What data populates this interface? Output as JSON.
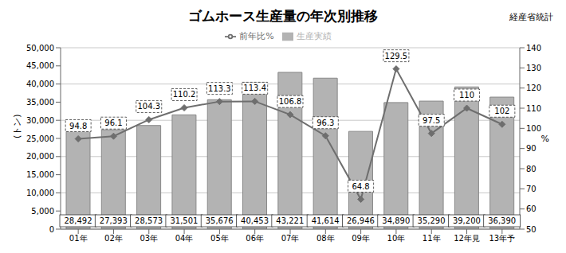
{
  "chart_data": {
    "type": "bar",
    "title": "ゴムホース生産量の年次別推移",
    "subtitle": "経産省統計",
    "y_label": "(トン)",
    "y2_label": "%",
    "categories": [
      "01年",
      "02年",
      "03年",
      "04年",
      "05年",
      "06年",
      "07年",
      "08年",
      "09年",
      "10年",
      "11年",
      "12年見",
      "13年予"
    ],
    "series": [
      {
        "name": "生産実績",
        "type": "bar",
        "color": "#b3b3b3",
        "values": [
          28492,
          27393,
          28573,
          31501,
          35676,
          40453,
          43221,
          41614,
          26946,
          34890,
          35290,
          39200,
          36390
        ],
        "value_labels": [
          "28,492",
          "27,393",
          "28,573",
          "31,501",
          "35,676",
          "40,453",
          "43,221",
          "41,614",
          "26,946",
          "34,890",
          "35,290",
          "39,200",
          "36,390"
        ]
      },
      {
        "name": "前年比%",
        "type": "line",
        "axis": "y2",
        "color": "#6e6e6e",
        "marker": "diamond",
        "values": [
          94.8,
          96.1,
          104.3,
          110.2,
          113.3,
          113.4,
          106.8,
          96.3,
          64.8,
          129.5,
          97.5,
          110,
          102
        ]
      }
    ],
    "ylim": [
      0,
      50000
    ],
    "yticks": [
      0,
      {
        "value": 5000,
        "label": "5,000"
      },
      {
        "value": 10000,
        "label": "10,000"
      },
      {
        "value": 15000,
        "label": "15,000"
      },
      {
        "value": 20000,
        "label": "20,000"
      },
      {
        "value": 25000,
        "label": "25,000"
      },
      {
        "value": 30000,
        "label": "30,000"
      },
      {
        "value": 35000,
        "label": "35,000"
      },
      {
        "value": 40000,
        "label": "40,000"
      },
      {
        "value": 45000,
        "label": "45,000"
      },
      {
        "value": 50000,
        "label": "50,000"
      }
    ],
    "y2lim": [
      50,
      140
    ],
    "y2ticks": [
      50,
      60,
      70,
      80,
      90,
      100,
      110,
      120,
      130,
      140
    ],
    "grid": true,
    "legend": "top",
    "data_labels": true
  }
}
